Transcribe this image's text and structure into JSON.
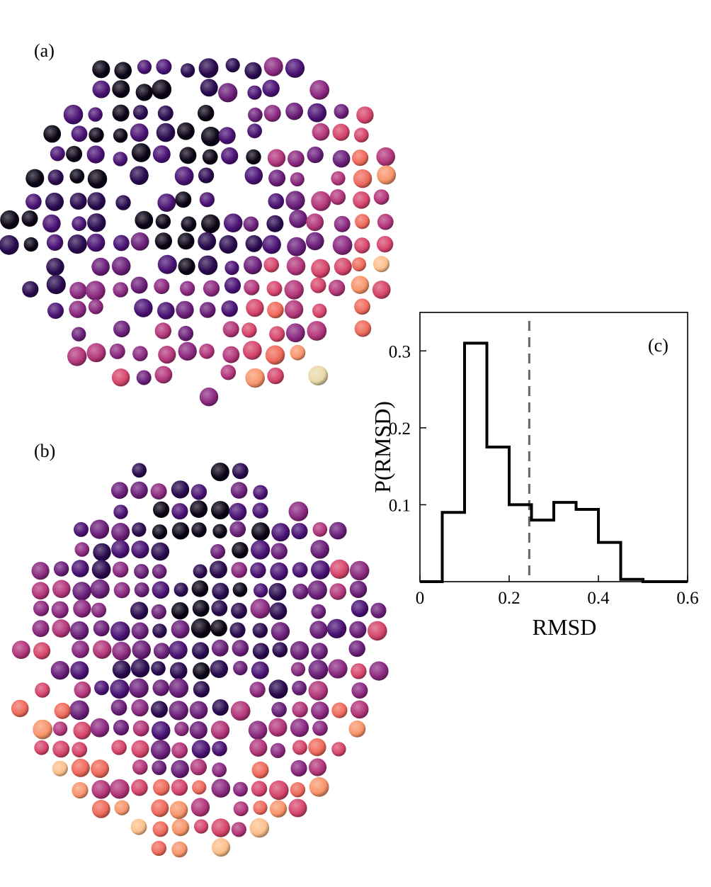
{
  "panels": {
    "a": {
      "label": "(a)"
    },
    "b": {
      "label": "(b)"
    }
  },
  "colormap": [
    "#0b0416",
    "#2a0a4f",
    "#4b1275",
    "#6b1f7a",
    "#8c2981",
    "#b3367b",
    "#d6456c",
    "#ef6a5c",
    "#f8956c",
    "#fcc08c",
    "#e8d9a8"
  ],
  "chart_data": {
    "type": "histogram",
    "panel_label": "(c)",
    "xlabel": "RMSD",
    "ylabel": "P(RMSD)",
    "xlim": [
      0,
      0.6
    ],
    "ylim": [
      0,
      0.35
    ],
    "xticks": [
      "0",
      "0.2",
      "0.4",
      "0.6"
    ],
    "yticks": [
      "0.1",
      "0.2",
      "0.3"
    ],
    "bin_width": 0.05,
    "bins": [
      {
        "x0": 0.0,
        "x1": 0.05,
        "value": 0.0
      },
      {
        "x0": 0.05,
        "x1": 0.1,
        "value": 0.09
      },
      {
        "x0": 0.1,
        "x1": 0.15,
        "value": 0.31
      },
      {
        "x0": 0.15,
        "x1": 0.2,
        "value": 0.175
      },
      {
        "x0": 0.2,
        "x1": 0.25,
        "value": 0.1
      },
      {
        "x0": 0.25,
        "x1": 0.3,
        "value": 0.08
      },
      {
        "x0": 0.3,
        "x1": 0.35,
        "value": 0.103
      },
      {
        "x0": 0.35,
        "x1": 0.4,
        "value": 0.094
      },
      {
        "x0": 0.4,
        "x1": 0.45,
        "value": 0.051
      },
      {
        "x0": 0.45,
        "x1": 0.5,
        "value": 0.003
      },
      {
        "x0": 0.5,
        "x1": 0.6,
        "value": 0.0
      }
    ],
    "threshold": 0.245,
    "grid": false
  }
}
